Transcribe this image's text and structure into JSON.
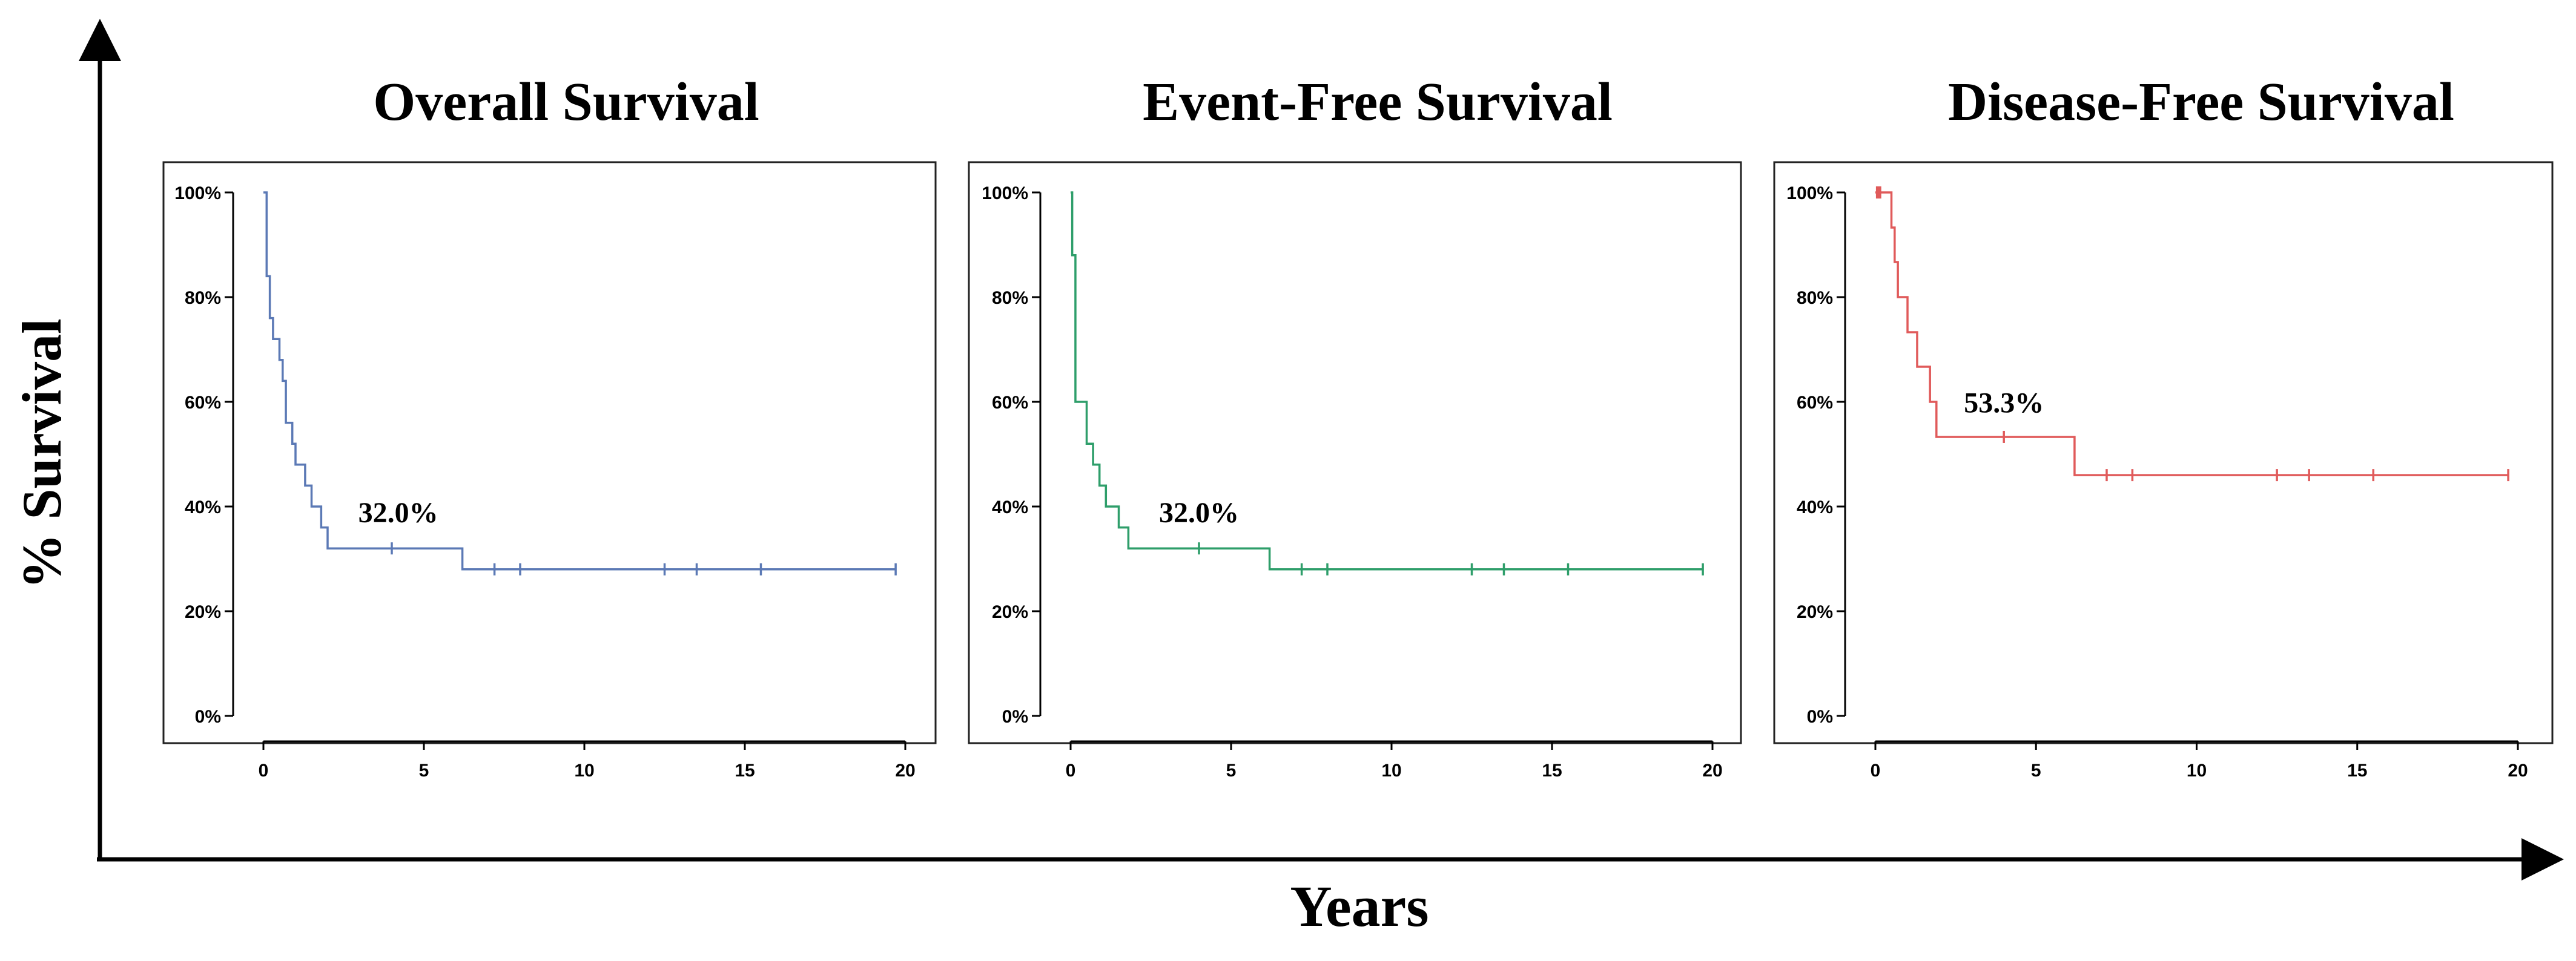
{
  "figure": {
    "ylabel": "% Survival",
    "xlabel": "Years",
    "axis_color": "#000000"
  },
  "chart_data": [
    {
      "type": "line",
      "step": "post",
      "title": "Overall Survival",
      "color": "#5b79b5",
      "xlim": [
        0,
        20
      ],
      "ylim": [
        0,
        100
      ],
      "xticks": [
        0,
        5,
        10,
        15,
        20
      ],
      "xtick_labels": [
        "0",
        "5",
        "10",
        "15",
        "20"
      ],
      "yticks": [
        0,
        20,
        40,
        60,
        80,
        100
      ],
      "ytick_labels": [
        "0%",
        "20%",
        "40%",
        "60%",
        "80%",
        "100%"
      ],
      "grid": false,
      "series": [
        {
          "x": [
            0,
            0.1,
            0.2,
            0.3,
            0.5,
            0.6,
            0.7,
            0.9,
            1.0,
            1.3,
            1.5,
            1.8,
            2.0,
            6.2,
            19.7
          ],
          "y": [
            100,
            84,
            76,
            72,
            68,
            64,
            56,
            52,
            48,
            44,
            40,
            36,
            32,
            28,
            28
          ]
        }
      ],
      "censored": [
        {
          "x": 4.0,
          "y": 32
        },
        {
          "x": 7.2,
          "y": 28
        },
        {
          "x": 8.0,
          "y": 28
        },
        {
          "x": 12.5,
          "y": 28
        },
        {
          "x": 13.5,
          "y": 28
        },
        {
          "x": 15.5,
          "y": 28
        },
        {
          "x": 19.7,
          "y": 28
        }
      ],
      "annotation": {
        "text": "32.0%",
        "x": 4.2,
        "y": 37
      }
    },
    {
      "type": "line",
      "step": "post",
      "title": "Event-Free Survival",
      "color": "#2e9e6a",
      "xlim": [
        0,
        20
      ],
      "ylim": [
        0,
        100
      ],
      "xticks": [
        0,
        5,
        10,
        15,
        20
      ],
      "xtick_labels": [
        "0",
        "5",
        "10",
        "15",
        "20"
      ],
      "yticks": [
        0,
        20,
        40,
        60,
        80,
        100
      ],
      "ytick_labels": [
        "0%",
        "20%",
        "40%",
        "60%",
        "80%",
        "100%"
      ],
      "grid": false,
      "series": [
        {
          "x": [
            0,
            0.05,
            0.15,
            0.5,
            0.7,
            0.9,
            1.1,
            1.5,
            1.8,
            2.0,
            6.2,
            19.7
          ],
          "y": [
            100,
            88,
            60,
            52,
            48,
            44,
            40,
            36,
            32,
            32,
            28,
            28
          ]
        }
      ],
      "censored": [
        {
          "x": 4.0,
          "y": 32
        },
        {
          "x": 7.2,
          "y": 28
        },
        {
          "x": 8.0,
          "y": 28
        },
        {
          "x": 12.5,
          "y": 28
        },
        {
          "x": 13.5,
          "y": 28
        },
        {
          "x": 15.5,
          "y": 28
        },
        {
          "x": 19.7,
          "y": 28
        }
      ],
      "annotation": {
        "text": "32.0%",
        "x": 4.0,
        "y": 37
      }
    },
    {
      "type": "line",
      "step": "post",
      "title": "Disease-Free Survival",
      "color": "#e05a5a",
      "xlim": [
        0,
        20
      ],
      "ylim": [
        0,
        100
      ],
      "xticks": [
        0,
        5,
        10,
        15,
        20
      ],
      "xtick_labels": [
        "0",
        "5",
        "10",
        "15",
        "20"
      ],
      "yticks": [
        0,
        20,
        40,
        60,
        80,
        100
      ],
      "ytick_labels": [
        "0%",
        "20%",
        "40%",
        "60%",
        "80%",
        "100%"
      ],
      "grid": false,
      "series": [
        {
          "x": [
            0,
            0.5,
            0.6,
            0.7,
            1.0,
            1.3,
            1.7,
            1.9,
            6.2,
            19.7
          ],
          "y": [
            100,
            93.3,
            86.7,
            80,
            73.3,
            66.7,
            60,
            53.3,
            46,
            46
          ]
        }
      ],
      "censored": [
        {
          "x": 0.05,
          "y": 100
        },
        {
          "x": 0.1,
          "y": 100
        },
        {
          "x": 0.15,
          "y": 100
        },
        {
          "x": 4.0,
          "y": 53.3
        },
        {
          "x": 7.2,
          "y": 46
        },
        {
          "x": 8.0,
          "y": 46
        },
        {
          "x": 12.5,
          "y": 46
        },
        {
          "x": 13.5,
          "y": 46
        },
        {
          "x": 15.5,
          "y": 46
        },
        {
          "x": 19.7,
          "y": 46
        }
      ],
      "annotation": {
        "text": "53.3%",
        "x": 4.0,
        "y": 58
      }
    }
  ]
}
